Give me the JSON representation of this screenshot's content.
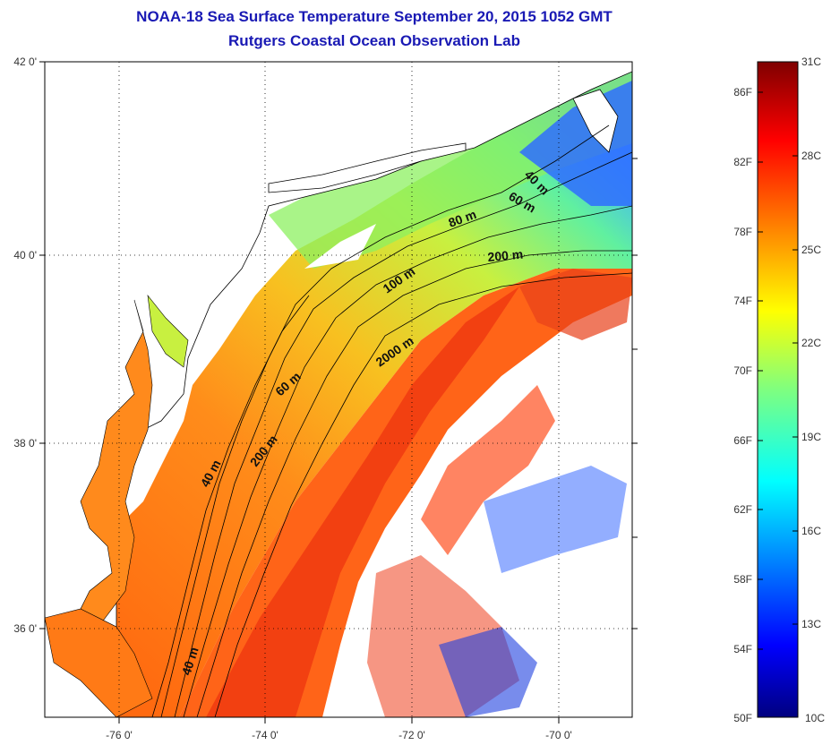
{
  "title": {
    "line1": "NOAA-18 Sea Surface Temperature September 20, 2015 1052 GMT",
    "line2": "Rutgers Coastal Ocean Observation Lab"
  },
  "map": {
    "lat_ticks": [
      "42 0'",
      "40 0'",
      "38 0'",
      "36 0'"
    ],
    "lon_ticks": [
      "-76 0'",
      "-74 0'",
      "-72 0'",
      "-70 0'"
    ],
    "contour_labels": [
      "40 m",
      "60 m",
      "80 m",
      "200 m",
      "100 m",
      "2000 m",
      "60 m",
      "200 m",
      "40 m",
      "40 m"
    ],
    "colors": {
      "land": "#ffffff",
      "coastline": "#000000",
      "contour": "#000000",
      "grid": "#000000"
    }
  },
  "colorbar": {
    "fahrenheit": [
      "86F",
      "82F",
      "78F",
      "74F",
      "70F",
      "66F",
      "62F",
      "58F",
      "54F",
      "50F"
    ],
    "celsius": [
      "31C",
      "28C",
      "25C",
      "22C",
      "19C",
      "16C",
      "13C",
      "10C"
    ],
    "colormap": "jet",
    "range_c": [
      10,
      31
    ]
  }
}
